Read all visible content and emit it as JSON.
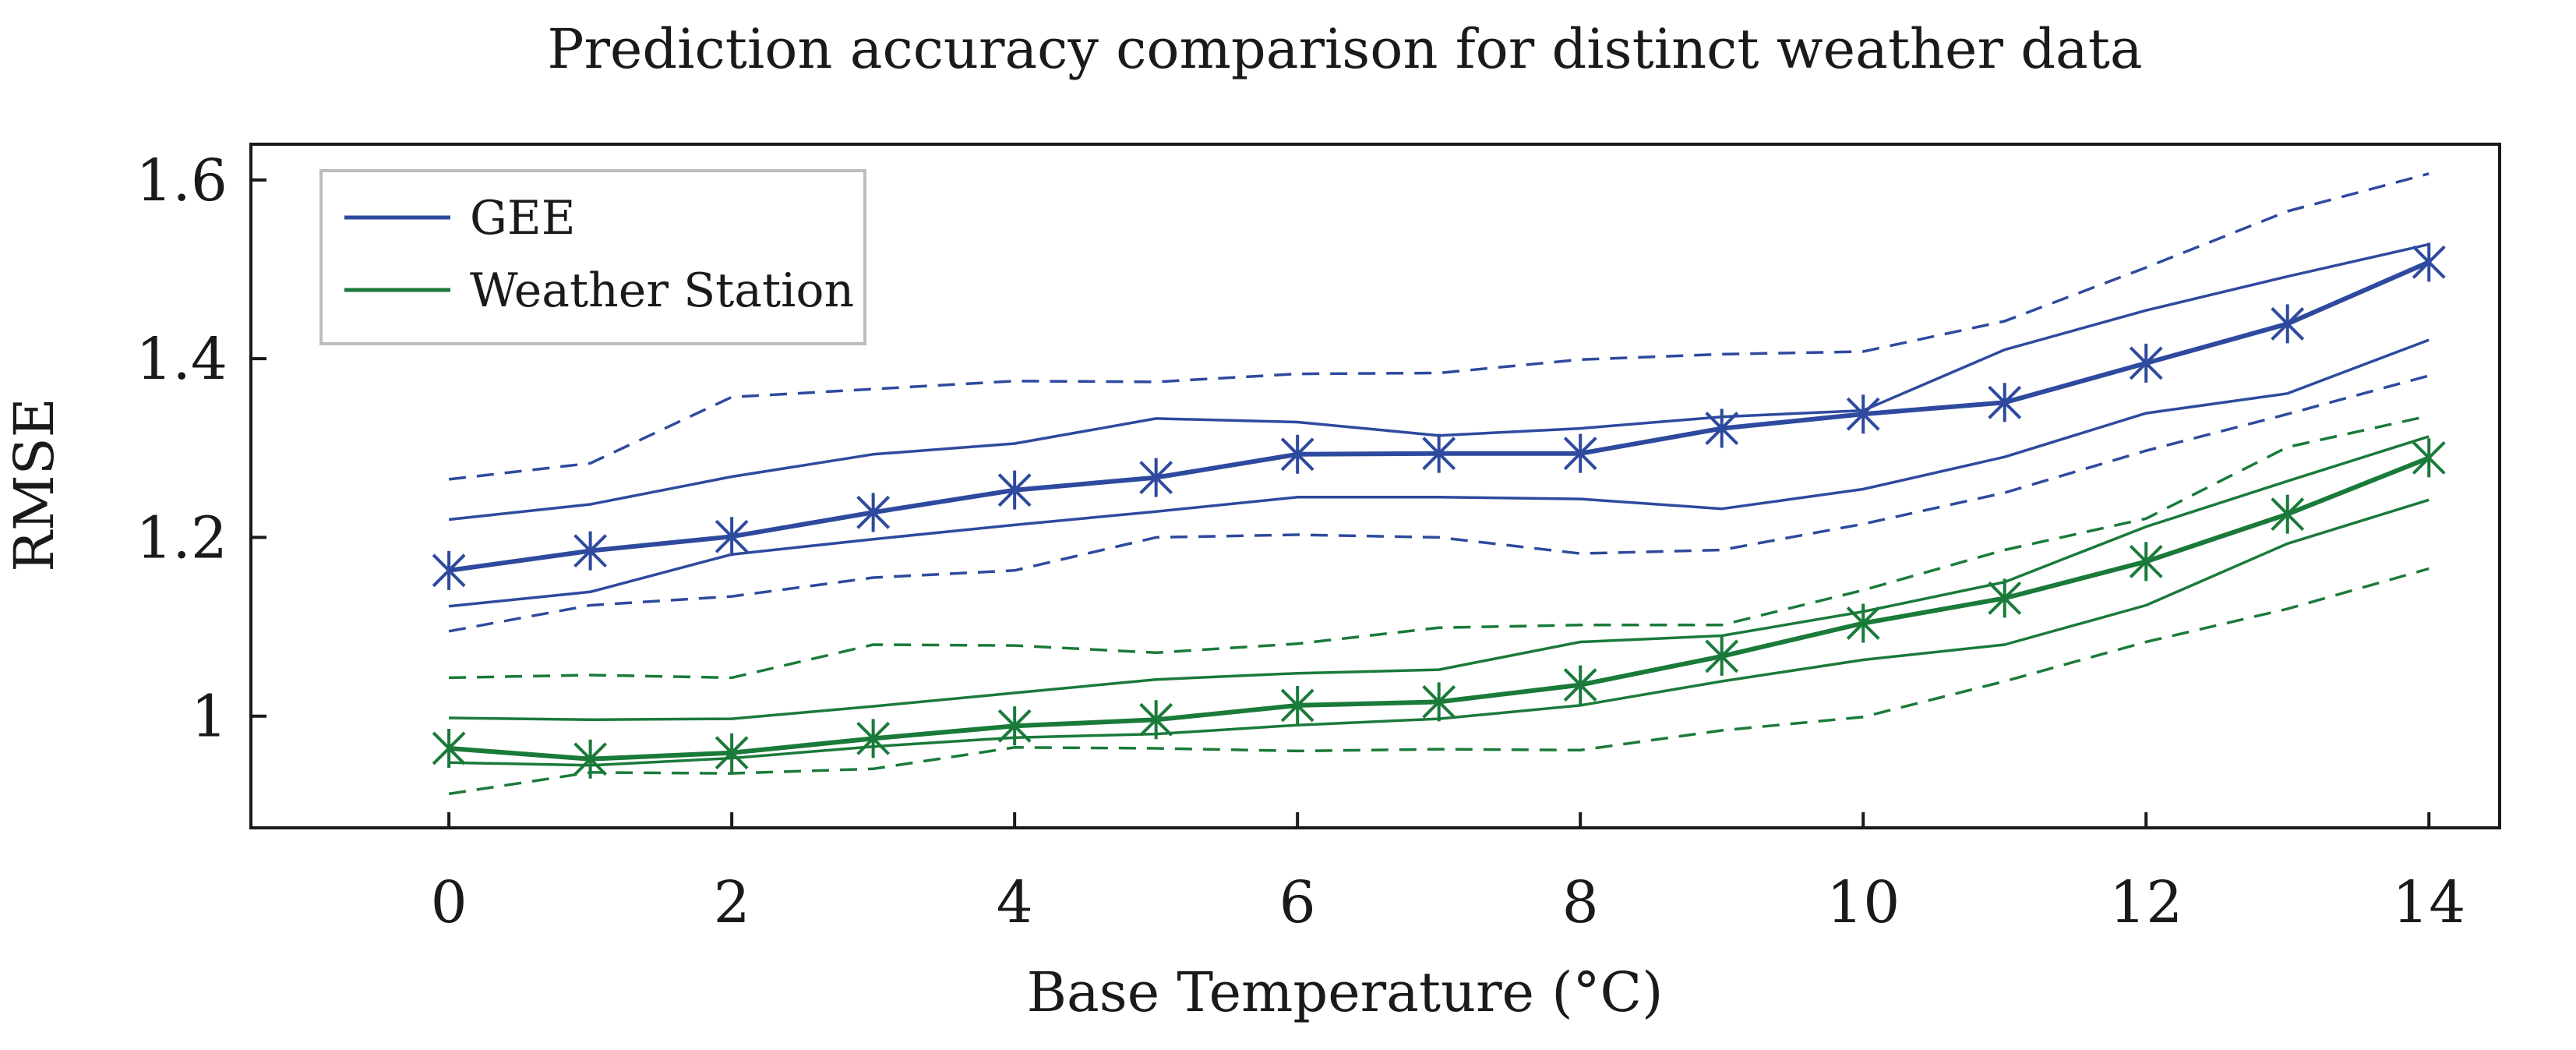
{
  "chart_data": {
    "type": "line",
    "title": "Prediction accuracy comparison for distinct weather data",
    "xlabel": "Base Temperature (°C)",
    "ylabel": "RMSE",
    "xlim": [
      -1.4,
      14.5
    ],
    "ylim": [
      0.875,
      1.64
    ],
    "xticks": [
      0,
      2,
      4,
      6,
      8,
      10,
      12,
      14
    ],
    "xtick_labels": [
      "0",
      "2",
      "4",
      "6",
      "8",
      "10",
      "12",
      "14"
    ],
    "yticks": [
      1.0,
      1.2,
      1.4,
      1.6
    ],
    "ytick_labels": [
      "1",
      "1.2",
      "1.4",
      "1.6"
    ],
    "grid": false,
    "legend_position": "top-left",
    "x": [
      0,
      1,
      2,
      3,
      4,
      5,
      6,
      7,
      8,
      9,
      10,
      11,
      12,
      13,
      14
    ],
    "series": [
      {
        "name": "GEE",
        "color": "#2e4a9e",
        "mean": [
          1.163,
          1.185,
          1.201,
          1.228,
          1.253,
          1.267,
          1.293,
          1.294,
          1.294,
          1.322,
          1.338,
          1.351,
          1.395,
          1.439,
          1.508
        ],
        "inner_upper": [
          1.22,
          1.237,
          1.268,
          1.293,
          1.305,
          1.333,
          1.329,
          1.314,
          1.322,
          1.335,
          1.342,
          1.41,
          1.454,
          1.492,
          1.528
        ],
        "inner_lower": [
          1.123,
          1.139,
          1.181,
          1.198,
          1.214,
          1.229,
          1.245,
          1.245,
          1.243,
          1.232,
          1.254,
          1.29,
          1.339,
          1.361,
          1.421
        ],
        "outer_upper": [
          1.265,
          1.283,
          1.357,
          1.366,
          1.375,
          1.374,
          1.383,
          1.384,
          1.399,
          1.405,
          1.408,
          1.442,
          1.502,
          1.565,
          1.607
        ],
        "outer_lower": [
          1.095,
          1.124,
          1.134,
          1.155,
          1.163,
          1.2,
          1.203,
          1.2,
          1.182,
          1.186,
          1.215,
          1.25,
          1.297,
          1.338,
          1.381
        ]
      },
      {
        "name": "Weather Station",
        "color": "#1a7a3a",
        "mean": [
          0.964,
          0.952,
          0.959,
          0.975,
          0.989,
          0.996,
          1.012,
          1.016,
          1.035,
          1.067,
          1.104,
          1.132,
          1.173,
          1.226,
          1.289
        ],
        "inner_upper": [
          0.998,
          0.996,
          0.997,
          1.011,
          1.026,
          1.041,
          1.048,
          1.052,
          1.083,
          1.09,
          1.117,
          1.15,
          1.212,
          1.263,
          1.313
        ],
        "inner_lower": [
          0.948,
          0.945,
          0.953,
          0.966,
          0.976,
          0.98,
          0.99,
          0.997,
          1.012,
          1.039,
          1.063,
          1.08,
          1.124,
          1.193,
          1.242
        ],
        "outer_upper": [
          1.043,
          1.046,
          1.043,
          1.08,
          1.079,
          1.071,
          1.081,
          1.099,
          1.102,
          1.102,
          1.141,
          1.186,
          1.221,
          1.301,
          1.336
        ],
        "outer_lower": [
          0.913,
          0.937,
          0.936,
          0.941,
          0.965,
          0.964,
          0.961,
          0.963,
          0.962,
          0.984,
          0.999,
          1.039,
          1.083,
          1.12,
          1.165
        ]
      }
    ]
  }
}
